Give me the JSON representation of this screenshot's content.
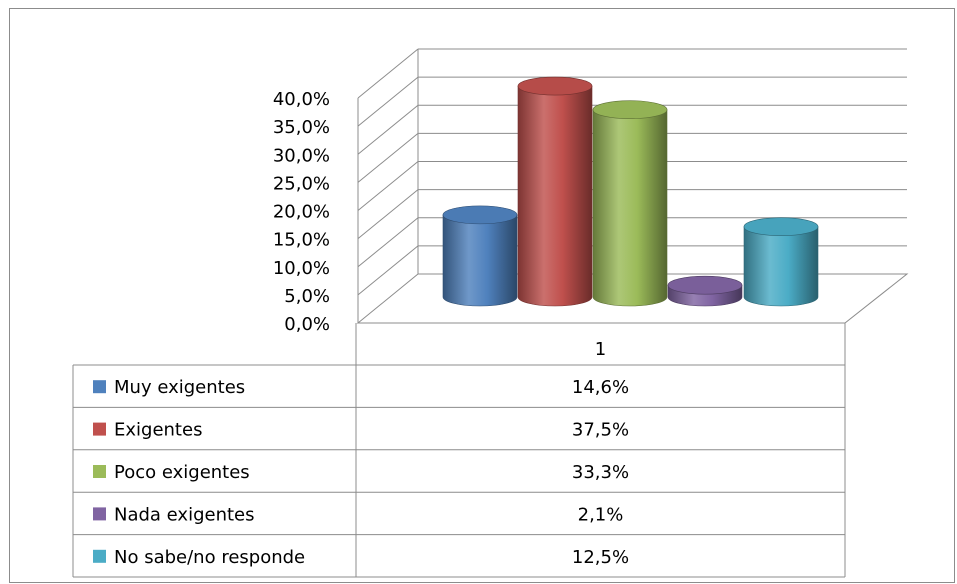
{
  "chart_data": {
    "type": "bar",
    "style": "3d-cylinder",
    "categories": [
      "1"
    ],
    "series": [
      {
        "name": "Muy exigentes",
        "values": [
          14.6
        ],
        "label": "14,6%",
        "color": "#4F81BD"
      },
      {
        "name": "Exigentes",
        "values": [
          37.5
        ],
        "label": "37,5%",
        "color": "#C0504D"
      },
      {
        "name": "Poco exigentes",
        "values": [
          33.3
        ],
        "label": "33,3%",
        "color": "#9BBB59"
      },
      {
        "name": "Nada exigentes",
        "values": [
          2.1
        ],
        "label": "2,1%",
        "color": "#8064A2"
      },
      {
        "name": "No sabe/no responde",
        "values": [
          12.5
        ],
        "label": "12,5%",
        "color": "#4BACC6"
      }
    ],
    "yticks": [
      "0,0%",
      "5,0%",
      "10,0%",
      "15,0%",
      "20,0%",
      "25,0%",
      "30,0%",
      "35,0%",
      "40,0%"
    ],
    "ylim": [
      0,
      40
    ],
    "grid": true,
    "legend": "data-table"
  }
}
